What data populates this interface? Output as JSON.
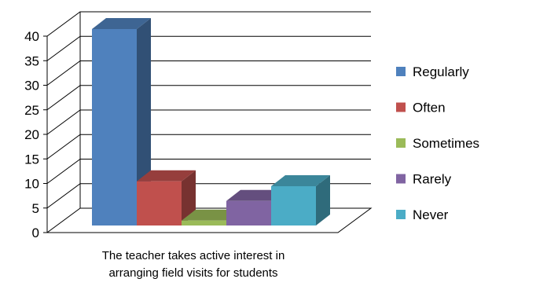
{
  "chart_data": {
    "type": "bar",
    "categories": [
      "The teacher takes active interest in arranging field visits for students"
    ],
    "category_label_lines": [
      "The teacher takes active interest in",
      "arranging field visits for students"
    ],
    "series": [
      {
        "name": "Regularly",
        "values": [
          40
        ],
        "color": "#4F81BD"
      },
      {
        "name": "Often",
        "values": [
          9
        ],
        "color": "#C0504D"
      },
      {
        "name": "Sometimes",
        "values": [
          1
        ],
        "color": "#9BBB59"
      },
      {
        "name": "Rarely",
        "values": [
          5
        ],
        "color": "#8064A2"
      },
      {
        "name": "Never",
        "values": [
          8
        ],
        "color": "#4BACC6"
      }
    ],
    "ylim": [
      0,
      40
    ],
    "yticks": [
      0,
      5,
      10,
      15,
      20,
      25,
      30,
      35,
      40
    ],
    "grid": true,
    "legend_position": "right",
    "style": "3d-column"
  }
}
